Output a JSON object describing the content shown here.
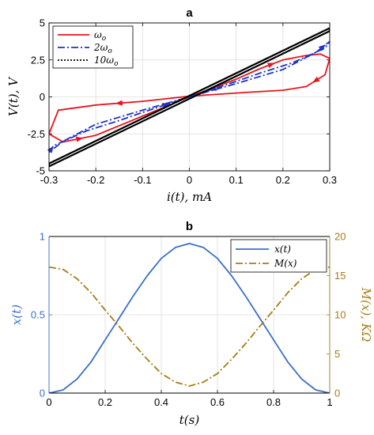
{
  "chart_data": [
    {
      "panel": "a",
      "type": "line",
      "title": "a",
      "xlabel": "i(t), mA",
      "ylabel": "V(t), V",
      "xlim": [
        -0.3,
        0.3
      ],
      "ylim": [
        -5,
        5
      ],
      "xticks": [
        "-0.3",
        "-0.2",
        "-0.1",
        "0",
        "0.1",
        "0.2",
        "0.3"
      ],
      "yticks": [
        "-5",
        "-2.5",
        "0",
        "2.5",
        "5"
      ],
      "grid": true,
      "legend_position": "top-left",
      "series": [
        {
          "name": "ω_o",
          "label_main": "ω",
          "label_sub": "o",
          "color": "#e8141b",
          "style": "solid",
          "x": [
            0,
            0.05,
            0.1,
            0.15,
            0.2,
            0.25,
            0.28,
            0.3,
            0.29,
            0.25,
            0.2,
            0.12,
            0.0,
            -0.1,
            -0.2,
            -0.28,
            -0.3,
            -0.27,
            -0.2,
            -0.1,
            0
          ],
          "y": [
            0,
            0.6,
            1.2,
            1.9,
            2.5,
            2.8,
            2.9,
            2.6,
            1.5,
            0.7,
            0.45,
            0.3,
            0.05,
            -0.3,
            -0.55,
            -0.9,
            -2.5,
            -3.05,
            -2.6,
            -1.3,
            0
          ]
        },
        {
          "name": "2ω_o",
          "label_main": "2ω",
          "label_sub": "o",
          "color": "#1c34c8",
          "style": "dashdot",
          "x": [
            0,
            0.1,
            0.2,
            0.27,
            0.3,
            0.29,
            0.22,
            0.15,
            0.1,
            0,
            -0.1,
            -0.2,
            -0.27,
            -0.3,
            -0.29,
            -0.22,
            -0.15,
            -0.1,
            0
          ],
          "y": [
            0,
            0.9,
            1.85,
            3.0,
            3.75,
            3.3,
            2.3,
            1.6,
            1.05,
            0,
            -0.9,
            -1.85,
            -3.0,
            -3.75,
            -3.3,
            -2.3,
            -1.6,
            -1.05,
            0
          ]
        },
        {
          "name": "10ω_o",
          "label_main": "10ω",
          "label_sub": "o",
          "color": "#000000",
          "style": "dotted",
          "x": [
            -0.3,
            0.3,
            0.3,
            -0.3,
            -0.3
          ],
          "y": [
            -4.7,
            4.45,
            4.65,
            -4.5,
            -4.7
          ]
        }
      ]
    },
    {
      "panel": "b",
      "type": "line",
      "title": "b",
      "xlabel": "t(s)",
      "ylabel_left": "x(t)",
      "ylabel_right": "M(x), KΩ",
      "xlim": [
        0,
        1
      ],
      "ylim_left": [
        0,
        1
      ],
      "ylim_right": [
        0,
        20
      ],
      "xticks": [
        "0",
        "0.2",
        "0.4",
        "0.6",
        "0.8",
        "1"
      ],
      "yticks_left": [
        "0",
        "0.5",
        "1"
      ],
      "yticks_right": [
        "0",
        "5",
        "10",
        "15",
        "20"
      ],
      "grid": true,
      "legend_position": "top-right",
      "left_axis_color": "#3a6fc9",
      "right_axis_color": "#a77b14",
      "series": [
        {
          "name": "x(t)",
          "color": "#3a6fc9",
          "style": "solid",
          "axis": "left",
          "x": [
            0,
            0.05,
            0.1,
            0.15,
            0.2,
            0.25,
            0.3,
            0.35,
            0.4,
            0.45,
            0.5,
            0.55,
            0.6,
            0.65,
            0.7,
            0.75,
            0.8,
            0.85,
            0.9,
            0.95,
            1
          ],
          "y": [
            0.0,
            0.02,
            0.09,
            0.2,
            0.34,
            0.48,
            0.62,
            0.75,
            0.86,
            0.93,
            0.955,
            0.93,
            0.86,
            0.75,
            0.62,
            0.48,
            0.34,
            0.2,
            0.09,
            0.02,
            0.0
          ]
        },
        {
          "name": "M(x)",
          "color": "#a77b14",
          "style": "dashdot",
          "axis": "right",
          "x": [
            0,
            0.05,
            0.1,
            0.15,
            0.2,
            0.25,
            0.3,
            0.35,
            0.4,
            0.45,
            0.5,
            0.55,
            0.6,
            0.65,
            0.7,
            0.75,
            0.8,
            0.85,
            0.9,
            0.95,
            1
          ],
          "y": [
            16.1,
            15.8,
            14.6,
            12.8,
            10.6,
            8.5,
            6.3,
            4.3,
            2.5,
            1.4,
            0.9,
            1.4,
            2.5,
            4.3,
            6.3,
            8.5,
            10.6,
            12.8,
            14.6,
            15.8,
            16.1
          ]
        }
      ]
    }
  ]
}
